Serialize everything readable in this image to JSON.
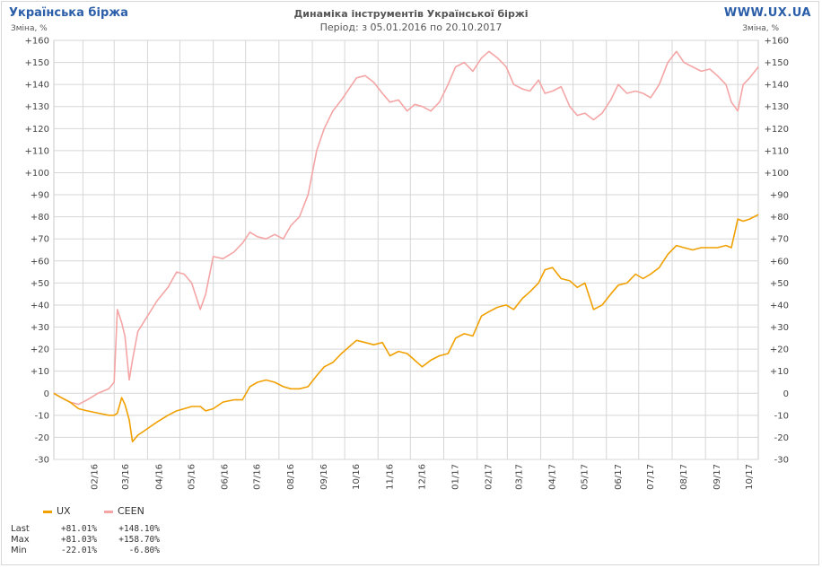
{
  "header": {
    "brand": "Українська біржа",
    "site": "WWW.UX.UA",
    "title": "Динаміка інструментів Української біржі",
    "period": "Період: з 05.01.2016 по 20.10.2017",
    "unit_left": "Зміна, %",
    "unit_right": "Зміна, %"
  },
  "chart_data": {
    "type": "line",
    "title": "Динаміка інструментів Української біржі",
    "subtitle": "Період: з 05.01.2016 по 20.10.2017",
    "ylabel": "Зміна, %",
    "ylim": [
      -30,
      160
    ],
    "yticks": [
      "+160",
      "+150",
      "+140",
      "+130",
      "+120",
      "+110",
      "+100",
      "+90",
      "+80",
      "+70",
      "+60",
      "+50",
      "+40",
      "+30",
      "+20",
      "+10",
      "0",
      "-10",
      "-20",
      "-30"
    ],
    "xticks": [
      "02/16",
      "03/16",
      "04/16",
      "05/16",
      "06/16",
      "07/16",
      "08/16",
      "09/16",
      "10/16",
      "11/16",
      "12/16",
      "01/17",
      "02/17",
      "03/17",
      "04/17",
      "05/17",
      "06/17",
      "07/17",
      "08/17",
      "09/17",
      "10/17"
    ],
    "x": [
      "2016-01-05",
      "2016-01-12",
      "2016-01-20",
      "2016-01-28",
      "2016-02-05",
      "2016-02-15",
      "2016-02-25",
      "2016-03-01",
      "2016-03-04",
      "2016-03-08",
      "2016-03-11",
      "2016-03-15",
      "2016-03-18",
      "2016-03-23",
      "2016-04-01",
      "2016-04-10",
      "2016-04-20",
      "2016-04-28",
      "2016-05-05",
      "2016-05-12",
      "2016-05-20",
      "2016-05-25",
      "2016-06-01",
      "2016-06-10",
      "2016-06-20",
      "2016-06-28",
      "2016-07-05",
      "2016-07-12",
      "2016-07-20",
      "2016-07-28",
      "2016-08-05",
      "2016-08-12",
      "2016-08-20",
      "2016-08-28",
      "2016-09-05",
      "2016-09-12",
      "2016-09-20",
      "2016-09-28",
      "2016-10-05",
      "2016-10-12",
      "2016-10-20",
      "2016-10-28",
      "2016-11-05",
      "2016-11-12",
      "2016-11-20",
      "2016-11-28",
      "2016-12-05",
      "2016-12-12",
      "2016-12-20",
      "2016-12-28",
      "2017-01-05",
      "2017-01-12",
      "2017-01-20",
      "2017-01-28",
      "2017-02-05",
      "2017-02-12",
      "2017-02-20",
      "2017-02-28",
      "2017-03-07",
      "2017-03-15",
      "2017-03-22",
      "2017-03-30",
      "2017-04-05",
      "2017-04-12",
      "2017-04-20",
      "2017-04-28",
      "2017-05-05",
      "2017-05-12",
      "2017-05-20",
      "2017-05-28",
      "2017-06-05",
      "2017-06-12",
      "2017-06-20",
      "2017-06-28",
      "2017-07-05",
      "2017-07-12",
      "2017-07-20",
      "2017-07-28",
      "2017-08-05",
      "2017-08-12",
      "2017-08-20",
      "2017-08-28",
      "2017-09-05",
      "2017-09-12",
      "2017-09-20",
      "2017-09-25",
      "2017-10-01",
      "2017-10-06",
      "2017-10-12",
      "2017-10-20"
    ],
    "series": [
      {
        "name": "UX",
        "color": "#f0a000",
        "values": [
          0,
          -2,
          -4,
          -7,
          -8,
          -9,
          -10,
          -10,
          -9,
          -2,
          -5,
          -12,
          -22,
          -19,
          -16,
          -13,
          -10,
          -8,
          -7,
          -6,
          -6,
          -8,
          -7,
          -4,
          -3,
          -3,
          3,
          5,
          6,
          5,
          3,
          2,
          2,
          3,
          8,
          12,
          14,
          18,
          21,
          24,
          23,
          22,
          23,
          17,
          19,
          18,
          15,
          12,
          15,
          17,
          18,
          25,
          27,
          26,
          35,
          37,
          39,
          40,
          38,
          43,
          46,
          50,
          56,
          57,
          52,
          51,
          48,
          50,
          38,
          40,
          45,
          49,
          50,
          54,
          52,
          54,
          57,
          63,
          67,
          66,
          65,
          66,
          66,
          66,
          67,
          66,
          79,
          78,
          79,
          81
        ]
      },
      {
        "name": "CEEN",
        "color": "#f4a5a5",
        "values": [
          0,
          -2,
          -4,
          -5,
          -3,
          0,
          2,
          5,
          38,
          32,
          26,
          6,
          15,
          28,
          35,
          42,
          48,
          55,
          54,
          50,
          38,
          45,
          62,
          61,
          64,
          68,
          73,
          71,
          70,
          72,
          70,
          76,
          80,
          90,
          110,
          120,
          128,
          133,
          138,
          143,
          144,
          141,
          136,
          132,
          133,
          128,
          131,
          130,
          128,
          132,
          140,
          148,
          150,
          146,
          152,
          155,
          152,
          148,
          140,
          138,
          137,
          142,
          136,
          137,
          139,
          130,
          126,
          127,
          124,
          127,
          133,
          140,
          136,
          137,
          136,
          134,
          140,
          150,
          155,
          150,
          148,
          146,
          147,
          144,
          140,
          132,
          128,
          140,
          143,
          148
        ]
      }
    ],
    "legend": [
      "UX",
      "CEEN"
    ],
    "grid": true,
    "legend_placement": "bottom-left"
  },
  "stats": {
    "rows": [
      {
        "label": "Last",
        "ux": "+81.01%",
        "ceen": "+148.10%"
      },
      {
        "label": "Max",
        "ux": "+81.03%",
        "ceen": "+158.70%"
      },
      {
        "label": "Min",
        "ux": "-22.01%",
        "ceen": "-6.80%"
      }
    ]
  }
}
